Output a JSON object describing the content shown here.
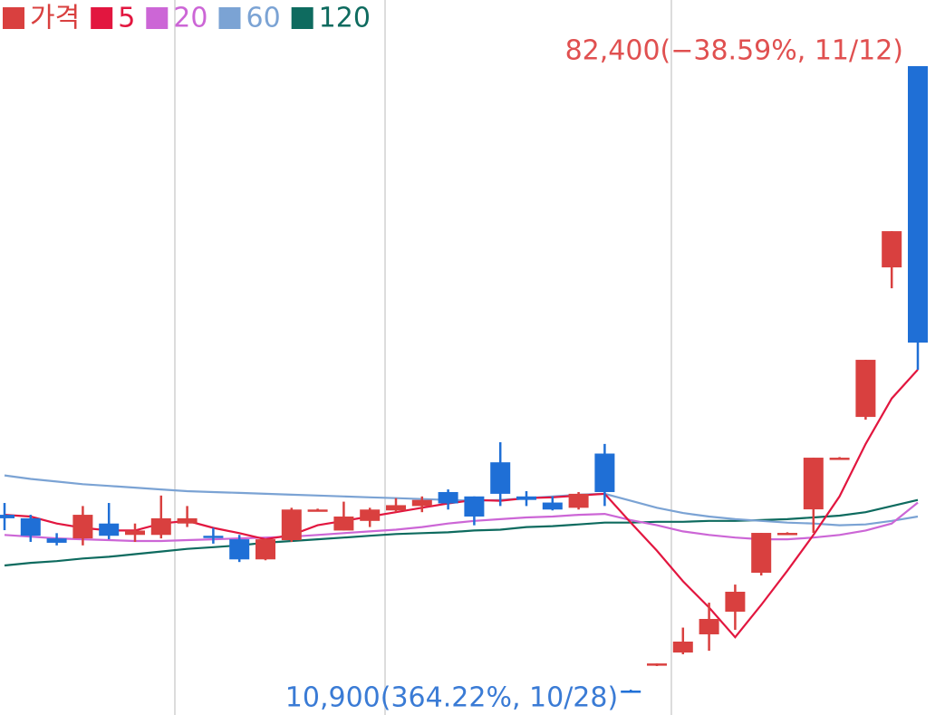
{
  "chart_data": {
    "type": "candlestick",
    "candles": {
      "name": "가격",
      "color": "#d9403f",
      "up_color": "#d9403f",
      "down_color": "#1f6fd6",
      "open": [
        31100,
        30700,
        28400,
        28400,
        30100,
        28800,
        28800,
        30100,
        28700,
        28300,
        26000,
        28200,
        31500,
        29300,
        30400,
        31600,
        32100,
        33700,
        33200,
        37100,
        33200,
        32500,
        31900,
        38100,
        11000,
        13900,
        15350,
        17430,
        20020,
        24470,
        28900,
        31720,
        37500,
        42290,
        59390,
        82400
      ],
      "high": [
        32450,
        31100,
        29000,
        32100,
        32450,
        30100,
        33300,
        32100,
        29600,
        28800,
        28400,
        31900,
        31800,
        32600,
        31900,
        33000,
        33200,
        34000,
        33200,
        39400,
        33800,
        33200,
        33700,
        39200,
        11100,
        14100,
        18200,
        21050,
        23120,
        29030,
        29100,
        37630,
        37700,
        48820,
        63530,
        82400
      ],
      "low": [
        29340,
        28000,
        27600,
        27600,
        28300,
        28000,
        28400,
        29700,
        27800,
        25700,
        25900,
        28000,
        31500,
        29300,
        29700,
        31400,
        31400,
        31700,
        29900,
        32100,
        32100,
        31600,
        31700,
        32100,
        10900,
        13800,
        15150,
        15550,
        17950,
        24160,
        28900,
        29030,
        37500,
        41980,
        57000,
        47680
      ],
      "close": [
        30700,
        28700,
        27900,
        31100,
        28700,
        29300,
        30700,
        30700,
        28600,
        26000,
        28300,
        31700,
        31700,
        30900,
        31700,
        32200,
        32800,
        32400,
        30900,
        33500,
        32800,
        31700,
        33500,
        33700,
        10900,
        14100,
        16600,
        19190,
        22300,
        29030,
        29030,
        37630,
        37630,
        48820,
        63530,
        50790
      ]
    },
    "series": [
      {
        "name": "5",
        "color": "#e2163f",
        "values": [
          31100,
          30900,
          30100,
          29600,
          29300,
          29300,
          30100,
          30400,
          29600,
          29000,
          28300,
          28800,
          29900,
          30400,
          30900,
          31400,
          31900,
          32400,
          32800,
          32700,
          33000,
          33100,
          33300,
          33500,
          30200,
          27000,
          23500,
          20500,
          17100,
          20800,
          24700,
          28800,
          33200,
          39200,
          44400,
          47700
        ]
      },
      {
        "name": "20",
        "color": "#cc66d6",
        "values": [
          28800,
          28600,
          28400,
          28300,
          28200,
          28100,
          28100,
          28200,
          28300,
          28400,
          28500,
          28600,
          28800,
          29000,
          29200,
          29400,
          29700,
          30100,
          30400,
          30600,
          30800,
          30900,
          31100,
          31200,
          30500,
          29900,
          29200,
          28800,
          28500,
          28300,
          28300,
          28500,
          28800,
          29300,
          30100,
          32500
        ]
      },
      {
        "name": "60",
        "color": "#7ba3d4",
        "values": [
          35600,
          35200,
          34900,
          34600,
          34400,
          34200,
          34000,
          33800,
          33700,
          33600,
          33500,
          33400,
          33300,
          33200,
          33100,
          33000,
          32900,
          32800,
          32700,
          32800,
          33000,
          33200,
          33400,
          33500,
          32700,
          31900,
          31300,
          30900,
          30600,
          30400,
          30200,
          30100,
          29900,
          30000,
          30400,
          30900
        ]
      },
      {
        "name": "120",
        "color": "#0e6b5f",
        "values": [
          25300,
          25600,
          25800,
          26100,
          26300,
          26600,
          26900,
          27200,
          27400,
          27600,
          27900,
          28100,
          28300,
          28500,
          28700,
          28900,
          29000,
          29100,
          29300,
          29400,
          29700,
          29800,
          30000,
          30200,
          30200,
          30300,
          30300,
          30400,
          30400,
          30500,
          30600,
          30800,
          31000,
          31400,
          32100,
          32800
        ]
      }
    ],
    "annotations": [
      {
        "text": "82,400(−38.59%, 11/12)",
        "color": "#e05050"
      },
      {
        "text": "10,900(364.22%, 10/28)",
        "color": "#3a7bd5"
      }
    ]
  }
}
